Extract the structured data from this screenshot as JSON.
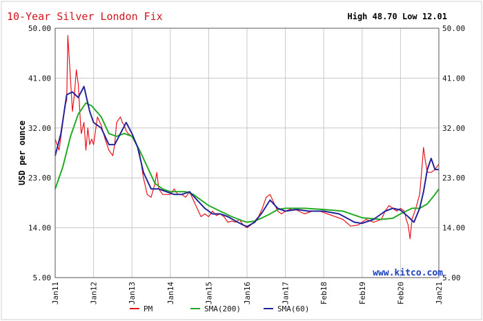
{
  "chart_data": {
    "type": "line",
    "title": "10-Year Silver London Fix",
    "high_low": "High 48.70 Low 12.01",
    "ylabel": "USD per ounce",
    "watermark": "www.kitco.com",
    "ylim": [
      5,
      50
    ],
    "y_ticks": [
      "5.00",
      "14.00",
      "23.00",
      "32.00",
      "41.00",
      "50.00"
    ],
    "x_ticks": [
      "Jan11",
      "Jan12",
      "Jan13",
      "Jan14",
      "Jan15",
      "Jan16",
      "Jan17",
      "Feb18",
      "Feb19",
      "Feb20",
      "Jan21"
    ],
    "grid": true,
    "legend_position": "bottom",
    "series": [
      {
        "name": "PM",
        "color": "#e8121b",
        "x": [
          2011.0,
          2011.1,
          2011.2,
          2011.25,
          2011.3,
          2011.33,
          2011.38,
          2011.45,
          2011.5,
          2011.55,
          2011.6,
          2011.65,
          2011.68,
          2011.75,
          2011.8,
          2011.85,
          2011.9,
          2011.95,
          2012.0,
          2012.1,
          2012.2,
          2012.3,
          2012.4,
          2012.5,
          2012.55,
          2012.6,
          2012.7,
          2012.75,
          2012.8,
          2012.85,
          2012.9,
          2013.0,
          2013.1,
          2013.2,
          2013.3,
          2013.4,
          2013.5,
          2013.6,
          2013.65,
          2013.7,
          2013.8,
          2013.9,
          2014.0,
          2014.1,
          2014.2,
          2014.3,
          2014.4,
          2014.5,
          2014.6,
          2014.7,
          2014.8,
          2014.9,
          2015.0,
          2015.1,
          2015.2,
          2015.3,
          2015.4,
          2015.5,
          2015.6,
          2015.7,
          2015.8,
          2015.9,
          2016.0,
          2016.1,
          2016.2,
          2016.3,
          2016.4,
          2016.5,
          2016.6,
          2016.7,
          2016.8,
          2016.9,
          2017.0,
          2017.2,
          2017.35,
          2017.5,
          2017.7,
          2017.9,
          2018.1,
          2018.3,
          2018.5,
          2018.7,
          2018.9,
          2019.1,
          2019.3,
          2019.5,
          2019.6,
          2019.7,
          2019.8,
          2019.9,
          2020.0,
          2020.1,
          2020.15,
          2020.2,
          2020.25,
          2020.3,
          2020.4,
          2020.5,
          2020.55,
          2020.6,
          2020.65,
          2020.7,
          2020.8,
          2020.9,
          2021.0
        ],
        "values": [
          30.0,
          28.0,
          33.0,
          36.0,
          37.0,
          48.7,
          43.0,
          35.0,
          38.0,
          42.5,
          40.0,
          34.0,
          31.0,
          33.0,
          28.0,
          32.0,
          29.0,
          30.0,
          29.0,
          34.0,
          32.5,
          30.0,
          28.0,
          27.0,
          29.0,
          33.0,
          34.0,
          33.0,
          32.5,
          31.5,
          31.0,
          30.5,
          29.5,
          27.5,
          23.0,
          20.0,
          19.5,
          22.0,
          24.0,
          21.0,
          20.0,
          20.0,
          20.0,
          21.0,
          20.0,
          20.0,
          19.5,
          20.5,
          19.0,
          17.5,
          16.0,
          16.5,
          16.0,
          17.0,
          16.2,
          16.5,
          16.0,
          15.0,
          15.2,
          15.0,
          15.5,
          14.5,
          14.0,
          14.5,
          15.2,
          16.0,
          17.5,
          19.5,
          20.0,
          18.5,
          17.0,
          16.5,
          17.0,
          17.5,
          17.0,
          16.5,
          17.0,
          17.0,
          16.5,
          16.0,
          15.5,
          14.3,
          14.5,
          15.5,
          15.0,
          15.5,
          17.0,
          18.0,
          17.5,
          17.0,
          17.5,
          17.0,
          15.5,
          14.5,
          12.01,
          15.5,
          17.5,
          20.0,
          24.0,
          28.5,
          26.0,
          24.0,
          24.0,
          24.5,
          25.5
        ]
      },
      {
        "name": "SMA(200)",
        "color": "#22aa22",
        "x": [
          2011.0,
          2011.2,
          2011.4,
          2011.6,
          2011.8,
          2011.95,
          2012.2,
          2012.4,
          2012.6,
          2012.8,
          2013.0,
          2013.2,
          2013.4,
          2013.6,
          2013.8,
          2014.0,
          2014.2,
          2014.4,
          2014.6,
          2014.8,
          2015.0,
          2015.3,
          2015.6,
          2015.9,
          2016.0,
          2016.2,
          2016.4,
          2016.6,
          2016.8,
          2017.0,
          2017.5,
          2018.0,
          2018.5,
          2019.0,
          2019.5,
          2019.8,
          2020.0,
          2020.3,
          2020.5,
          2020.7,
          2020.9,
          2021.0
        ],
        "values": [
          21.0,
          25.0,
          30.5,
          34.5,
          36.5,
          36.0,
          34.0,
          31.0,
          30.5,
          31.0,
          30.5,
          28.0,
          25.0,
          22.0,
          21.0,
          20.5,
          20.5,
          20.5,
          20.0,
          19.0,
          18.0,
          17.0,
          16.0,
          15.2,
          15.0,
          15.2,
          15.8,
          16.5,
          17.3,
          17.5,
          17.5,
          17.3,
          17.0,
          15.8,
          15.5,
          15.7,
          16.5,
          17.5,
          17.5,
          18.3,
          20.0,
          21.0
        ]
      },
      {
        "name": "SMA(60)",
        "color": "#22229a",
        "x": [
          2011.0,
          2011.15,
          2011.3,
          2011.45,
          2011.6,
          2011.75,
          2011.9,
          2012.0,
          2012.2,
          2012.4,
          2012.55,
          2012.7,
          2012.85,
          2013.0,
          2013.15,
          2013.3,
          2013.5,
          2013.7,
          2013.9,
          2014.1,
          2014.3,
          2014.5,
          2014.7,
          2014.9,
          2015.1,
          2015.3,
          2015.5,
          2015.7,
          2015.9,
          2016.0,
          2016.2,
          2016.4,
          2016.6,
          2016.8,
          2017.0,
          2017.3,
          2017.6,
          2018.0,
          2018.4,
          2018.8,
          2019.0,
          2019.3,
          2019.6,
          2019.8,
          2020.0,
          2020.2,
          2020.35,
          2020.5,
          2020.6,
          2020.7,
          2020.8,
          2020.9,
          2021.0
        ],
        "values": [
          27.0,
          31.0,
          38.0,
          38.5,
          37.5,
          39.5,
          35.0,
          33.0,
          32.0,
          29.0,
          29.0,
          31.0,
          33.0,
          31.0,
          28.5,
          24.0,
          21.0,
          21.0,
          20.5,
          20.0,
          20.0,
          20.5,
          19.0,
          17.5,
          16.5,
          16.5,
          16.0,
          15.2,
          14.5,
          14.2,
          15.0,
          16.8,
          19.0,
          17.5,
          17.0,
          17.3,
          17.0,
          17.0,
          16.5,
          15.0,
          14.8,
          15.5,
          17.0,
          17.5,
          17.2,
          16.0,
          15.0,
          17.5,
          20.5,
          24.5,
          26.5,
          24.5,
          24.5
        ]
      }
    ]
  }
}
